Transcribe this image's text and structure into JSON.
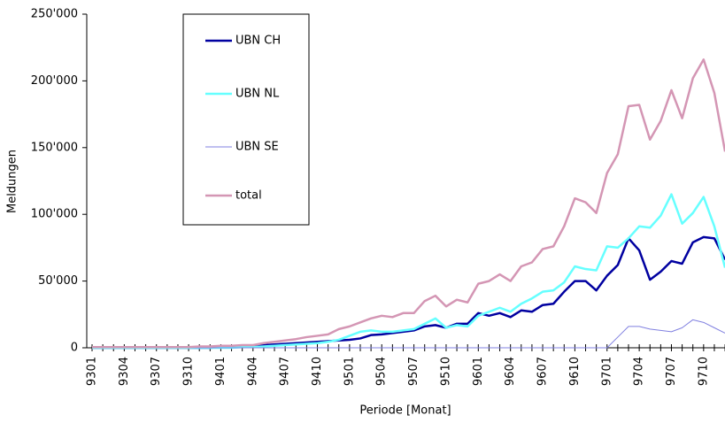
{
  "chart_data": {
    "type": "line",
    "x_label": "Periode [Monat]",
    "y_label": "Meldungen",
    "categories": [
      "9301",
      null,
      null,
      "9304",
      null,
      null,
      "9307",
      null,
      null,
      "9310",
      null,
      null,
      "9401",
      null,
      null,
      "9404",
      null,
      null,
      "9407",
      null,
      null,
      "9410",
      null,
      null,
      "9501",
      null,
      null,
      "9504",
      null,
      null,
      "9507",
      null,
      null,
      "9510",
      null,
      null,
      "9601",
      null,
      null,
      "9604",
      null,
      null,
      "9607",
      null,
      null,
      "9610",
      null,
      null,
      "9701",
      null,
      null,
      "9704",
      null,
      null,
      "9707",
      null,
      null,
      "9710",
      null,
      null
    ],
    "series": [
      {
        "name": "UBN CH",
        "color": "#0000a0",
        "width": 2.5,
        "values": [
          0,
          0,
          0,
          0,
          0,
          0,
          0,
          0,
          0,
          0,
          0,
          0,
          500,
          500,
          1000,
          1000,
          2000,
          2500,
          3000,
          3500,
          4000,
          4500,
          5000,
          5500,
          6000,
          7000,
          9500,
          10000,
          11000,
          12000,
          13000,
          16000,
          17000,
          15000,
          18000,
          18000,
          26000,
          24000,
          26000,
          23000,
          28000,
          27000,
          32000,
          33000,
          42000,
          50000,
          50000,
          43000,
          54000,
          62000,
          82000,
          73000,
          51000,
          57000,
          65000,
          63000,
          79000,
          83000,
          82000,
          66000
        ]
      },
      {
        "name": "UBN NL",
        "color": "#66ffff",
        "width": 2.5,
        "values": [
          0,
          0,
          0,
          0,
          0,
          0,
          0,
          0,
          0,
          0,
          0,
          0,
          0,
          0,
          500,
          500,
          1000,
          1500,
          2000,
          2500,
          3000,
          3500,
          4500,
          6000,
          9000,
          12000,
          13000,
          12000,
          12000,
          13000,
          14000,
          18000,
          22000,
          15000,
          17000,
          16000,
          24000,
          27000,
          30000,
          27000,
          33000,
          37000,
          42000,
          43000,
          49000,
          61000,
          59000,
          58000,
          76000,
          75000,
          82000,
          91000,
          90000,
          99000,
          115000,
          93000,
          101000,
          113000,
          91000,
          60000
        ]
      },
      {
        "name": "UBN SE",
        "color": "#8080e0",
        "width": 1,
        "values": [
          0,
          0,
          0,
          0,
          0,
          0,
          0,
          0,
          0,
          0,
          0,
          0,
          0,
          0,
          0,
          0,
          0,
          0,
          0,
          0,
          0,
          0,
          0,
          0,
          0,
          0,
          0,
          0,
          0,
          0,
          0,
          0,
          0,
          0,
          0,
          0,
          0,
          0,
          0,
          0,
          0,
          0,
          0,
          0,
          0,
          0,
          0,
          0,
          0,
          8000,
          16000,
          16000,
          14000,
          13000,
          12000,
          15000,
          21000,
          19000,
          15000,
          11000
        ]
      },
      {
        "name": "total",
        "color": "#d496b4",
        "width": 2.5,
        "values": [
          500,
          500,
          500,
          500,
          500,
          500,
          500,
          500,
          500,
          500,
          1000,
          1000,
          1500,
          1500,
          2000,
          2000,
          3500,
          4500,
          5500,
          6500,
          8000,
          9000,
          10000,
          14000,
          16000,
          19000,
          22000,
          24000,
          23000,
          26000,
          26000,
          35000,
          39000,
          31000,
          36000,
          34000,
          48000,
          50000,
          55000,
          50000,
          61000,
          64000,
          74000,
          76000,
          91000,
          112000,
          109000,
          101000,
          131000,
          145000,
          181000,
          182000,
          156000,
          170000,
          193000,
          172000,
          202000,
          216000,
          191000,
          147000
        ]
      }
    ],
    "ylim": [
      0,
      250000
    ],
    "yticks": [
      0,
      {
        "value": 50000,
        "label": "50'000"
      },
      {
        "value": 100000,
        "label": "100'000"
      },
      {
        "value": 150000,
        "label": "150'000"
      },
      {
        "value": 200000,
        "label": "200'000"
      },
      {
        "value": 250000,
        "label": "250'000"
      }
    ]
  }
}
